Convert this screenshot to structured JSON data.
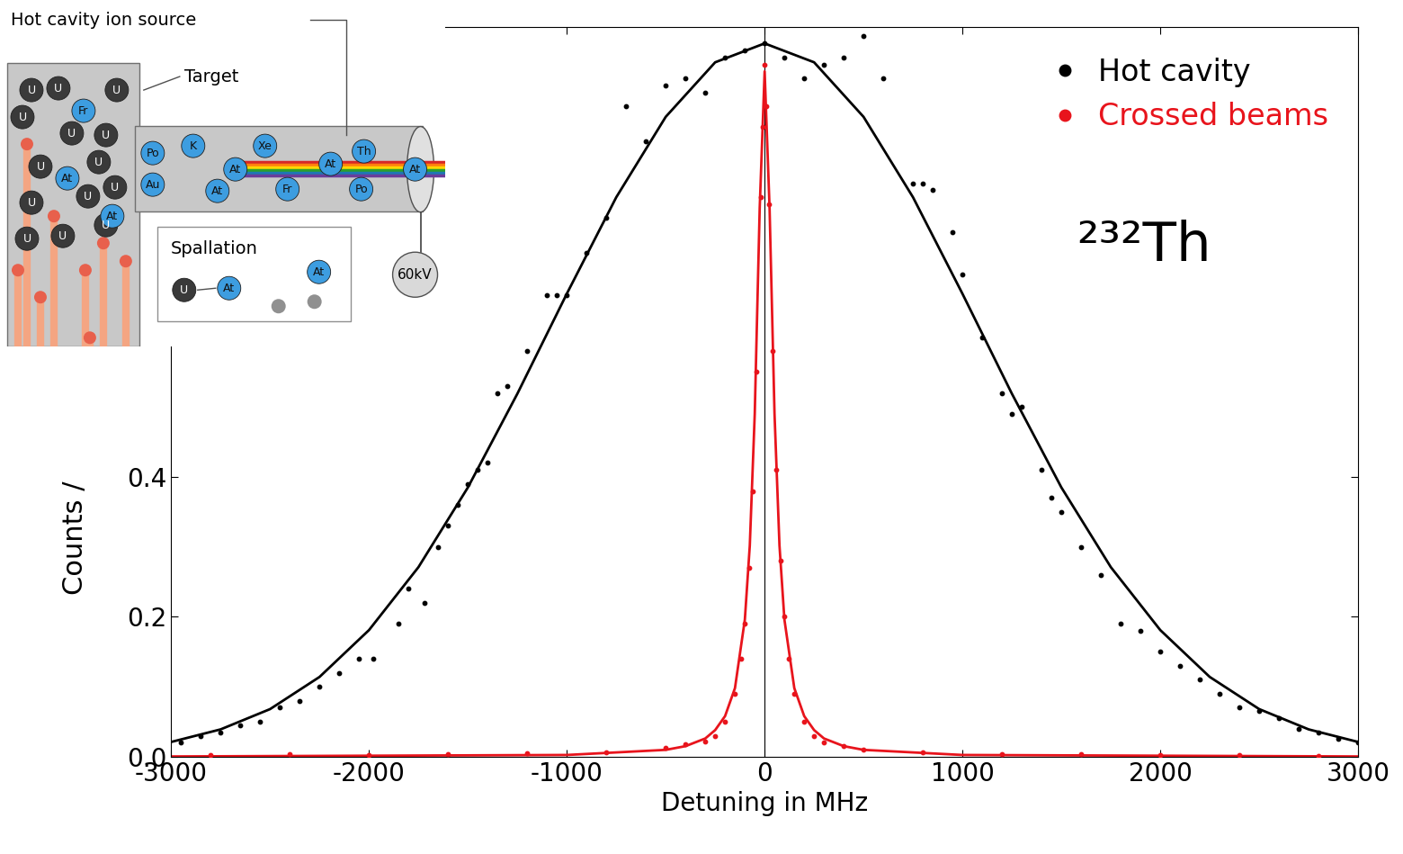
{
  "chart_data": {
    "type": "scatter",
    "y_label": "Counts /",
    "x_label": "Detuning in MHz",
    "xlim": [
      -3000,
      3000
    ],
    "xticks": [
      -3000,
      -2000,
      -1000,
      0,
      1000,
      2000,
      3000
    ],
    "ylim": [
      0,
      1.043
    ],
    "yticks": [
      0.0,
      0.2,
      0.4
    ],
    "legend": "upper right",
    "vline_x": 0,
    "annotations": [
      "²³²Th"
    ],
    "series": [
      {
        "name": "Hot cavity",
        "color": "#000000",
        "marker": "o",
        "x": [
          -2950,
          -2850,
          -2750,
          -2650,
          -2550,
          -2450,
          -2350,
          -2250,
          -2150,
          -2050,
          -1980,
          -1850,
          -1800,
          -1720,
          -1650,
          -1600,
          -1550,
          -1500,
          -1450,
          -1400,
          -1350,
          -1300,
          -1200,
          -1100,
          -1050,
          -1000,
          -900,
          -800,
          -700,
          -600,
          -500,
          -400,
          -300,
          -200,
          -100,
          0,
          100,
          200,
          300,
          400,
          500,
          600,
          750,
          800,
          850,
          950,
          1000,
          1100,
          1200,
          1250,
          1300,
          1400,
          1450,
          1500,
          1600,
          1700,
          1800,
          1900,
          2000,
          2100,
          2200,
          2300,
          2400,
          2500,
          2600,
          2700,
          2800,
          2900,
          3000
        ],
        "values": [
          0.02,
          0.03,
          0.035,
          0.045,
          0.05,
          0.07,
          0.08,
          0.1,
          0.12,
          0.14,
          0.14,
          0.19,
          0.24,
          0.22,
          0.3,
          0.33,
          0.36,
          0.39,
          0.41,
          0.42,
          0.52,
          0.53,
          0.58,
          0.66,
          0.66,
          0.66,
          0.72,
          0.77,
          0.93,
          0.88,
          0.96,
          0.97,
          0.95,
          1.0,
          1.01,
          1.02,
          1.0,
          0.97,
          0.99,
          1.0,
          1.03,
          0.97,
          0.82,
          0.82,
          0.81,
          0.75,
          0.69,
          0.6,
          0.52,
          0.49,
          0.5,
          0.41,
          0.37,
          0.35,
          0.3,
          0.26,
          0.19,
          0.18,
          0.15,
          0.13,
          0.11,
          0.09,
          0.07,
          0.065,
          0.055,
          0.04,
          0.035,
          0.025,
          0.02
        ],
        "fit": {
          "x": [
            -3000,
            -2750,
            -2500,
            -2250,
            -2000,
            -1750,
            -1500,
            -1250,
            -1000,
            -750,
            -500,
            -250,
            0,
            250,
            500,
            750,
            1000,
            1250,
            1500,
            1750,
            2000,
            2250,
            2500,
            2750,
            3000
          ],
          "values": [
            0.021,
            0.039,
            0.068,
            0.114,
            0.181,
            0.271,
            0.385,
            0.519,
            0.662,
            0.8,
            0.915,
            0.993,
            1.02,
            0.993,
            0.915,
            0.8,
            0.662,
            0.519,
            0.385,
            0.271,
            0.181,
            0.114,
            0.068,
            0.039,
            0.021
          ]
        }
      },
      {
        "name": "Crossed beams",
        "color": "#e8141c",
        "marker": "o",
        "x": [
          -2800,
          -2400,
          -2000,
          -1600,
          -1200,
          -800,
          -500,
          -400,
          -300,
          -250,
          -200,
          -150,
          -120,
          -100,
          -80,
          -60,
          -40,
          -20,
          -10,
          0,
          10,
          20,
          40,
          60,
          80,
          100,
          120,
          150,
          200,
          250,
          300,
          400,
          500,
          800,
          1200,
          1600,
          2000,
          2400,
          2800
        ],
        "values": [
          0.002,
          0.003,
          0.002,
          0.004,
          0.005,
          0.006,
          0.012,
          0.018,
          0.022,
          0.03,
          0.05,
          0.09,
          0.14,
          0.19,
          0.27,
          0.38,
          0.55,
          0.8,
          0.9,
          0.99,
          0.93,
          0.79,
          0.58,
          0.41,
          0.28,
          0.2,
          0.14,
          0.09,
          0.05,
          0.03,
          0.02,
          0.015,
          0.01,
          0.006,
          0.004,
          0.003,
          0.002,
          0.002,
          0.001
        ],
        "fit": {
          "x": [
            -3000,
            -1000,
            -500,
            -400,
            -300,
            -250,
            -200,
            -150,
            -100,
            -75,
            -50,
            -25,
            0,
            25,
            50,
            75,
            100,
            150,
            200,
            250,
            300,
            400,
            500,
            1000,
            3000
          ],
          "values": [
            0.0003,
            0.0024,
            0.0097,
            0.015,
            0.026,
            0.038,
            0.058,
            0.098,
            0.196,
            0.302,
            0.49,
            0.784,
            0.98,
            0.784,
            0.49,
            0.302,
            0.196,
            0.098,
            0.058,
            0.038,
            0.026,
            0.015,
            0.0097,
            0.0024,
            0.0003
          ]
        }
      }
    ]
  },
  "inset_diagram": {
    "title": "Hot cavity ion source",
    "target_label": "Target",
    "spallation_label": "Spallation",
    "voltage_label": "60kV",
    "target_atoms": [
      "U",
      "U",
      "U",
      "U",
      "U",
      "U",
      "U",
      "U",
      "U",
      "U",
      "U",
      "U",
      "U",
      "U",
      "Fr",
      "At",
      "At"
    ],
    "beam_atoms": [
      "Po",
      "K",
      "Xe",
      "At",
      "Au",
      "At",
      "At",
      "Fr",
      "Po",
      "Th",
      "At"
    ],
    "spallation_atoms": [
      "U",
      "At",
      "At"
    ]
  }
}
